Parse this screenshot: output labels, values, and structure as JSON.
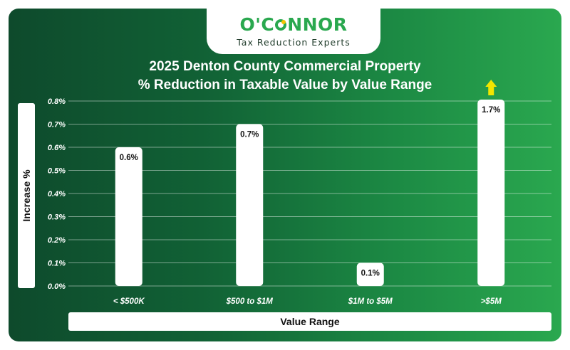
{
  "logo": {
    "name_prefix": "O'C",
    "name_suffix": "NNOR",
    "tagline": "Tax Reduction Experts"
  },
  "colors": {
    "background_dark": "#0e4a2c",
    "background_light": "#2aa84f",
    "bar": "#ffffff",
    "arrow": "#f2e600",
    "brand_green": "#2aa84f"
  },
  "chart_data": {
    "type": "bar",
    "title": "2025 Denton County Commercial Property",
    "subtitle": "% Reduction in Taxable Value by Value Range",
    "xlabel": "Value Range",
    "ylabel": "Increase %",
    "categories": [
      "< $500K",
      "$500 to $1M",
      "$1M to $5M",
      ">$5M"
    ],
    "values": [
      0.6,
      0.7,
      0.1,
      1.7
    ],
    "data_labels": [
      "0.6%",
      "0.7%",
      "0.1%",
      "1.7%"
    ],
    "ylim": [
      0,
      0.8
    ],
    "yticks": [
      "0.0%",
      "0.1%",
      "0.2%",
      "0.3%",
      "0.4%",
      "0.5%",
      "0.6%",
      "0.7%",
      "0.8%"
    ],
    "grid": true,
    "annotations": [
      {
        "type": "arrow-up",
        "category": ">$5M",
        "meaning": "value exceeds axis range"
      }
    ]
  }
}
